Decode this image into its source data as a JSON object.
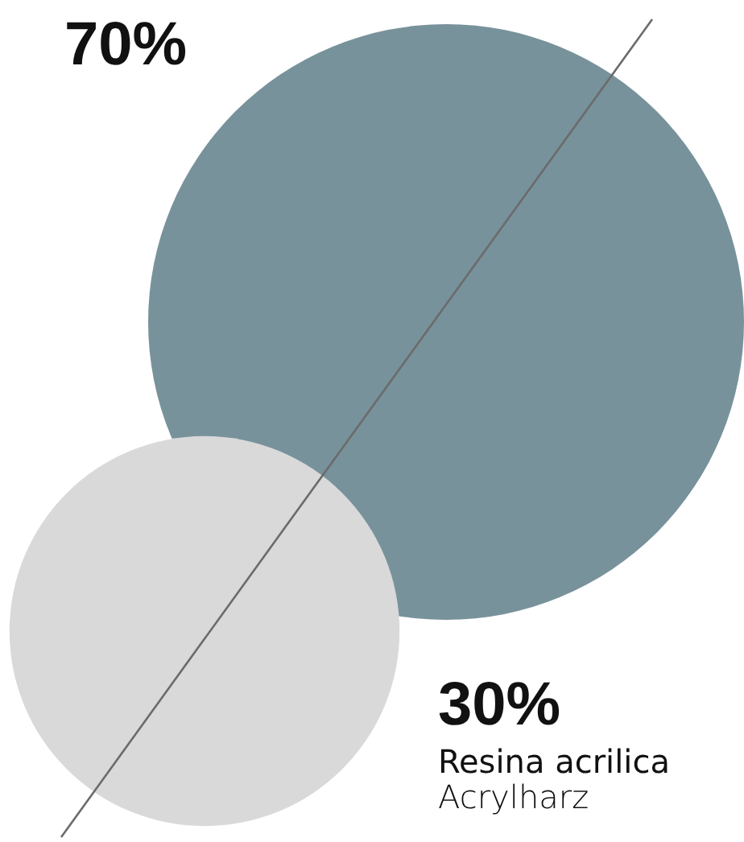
{
  "chart_data": {
    "type": "other",
    "categories": [
      null,
      "Resina acrilica\nAcrylharz"
    ],
    "values": [
      70,
      30
    ],
    "value_labels": [
      "70%",
      "30%"
    ],
    "colors": [
      "#78929b",
      "#d9d9d9"
    ]
  }
}
